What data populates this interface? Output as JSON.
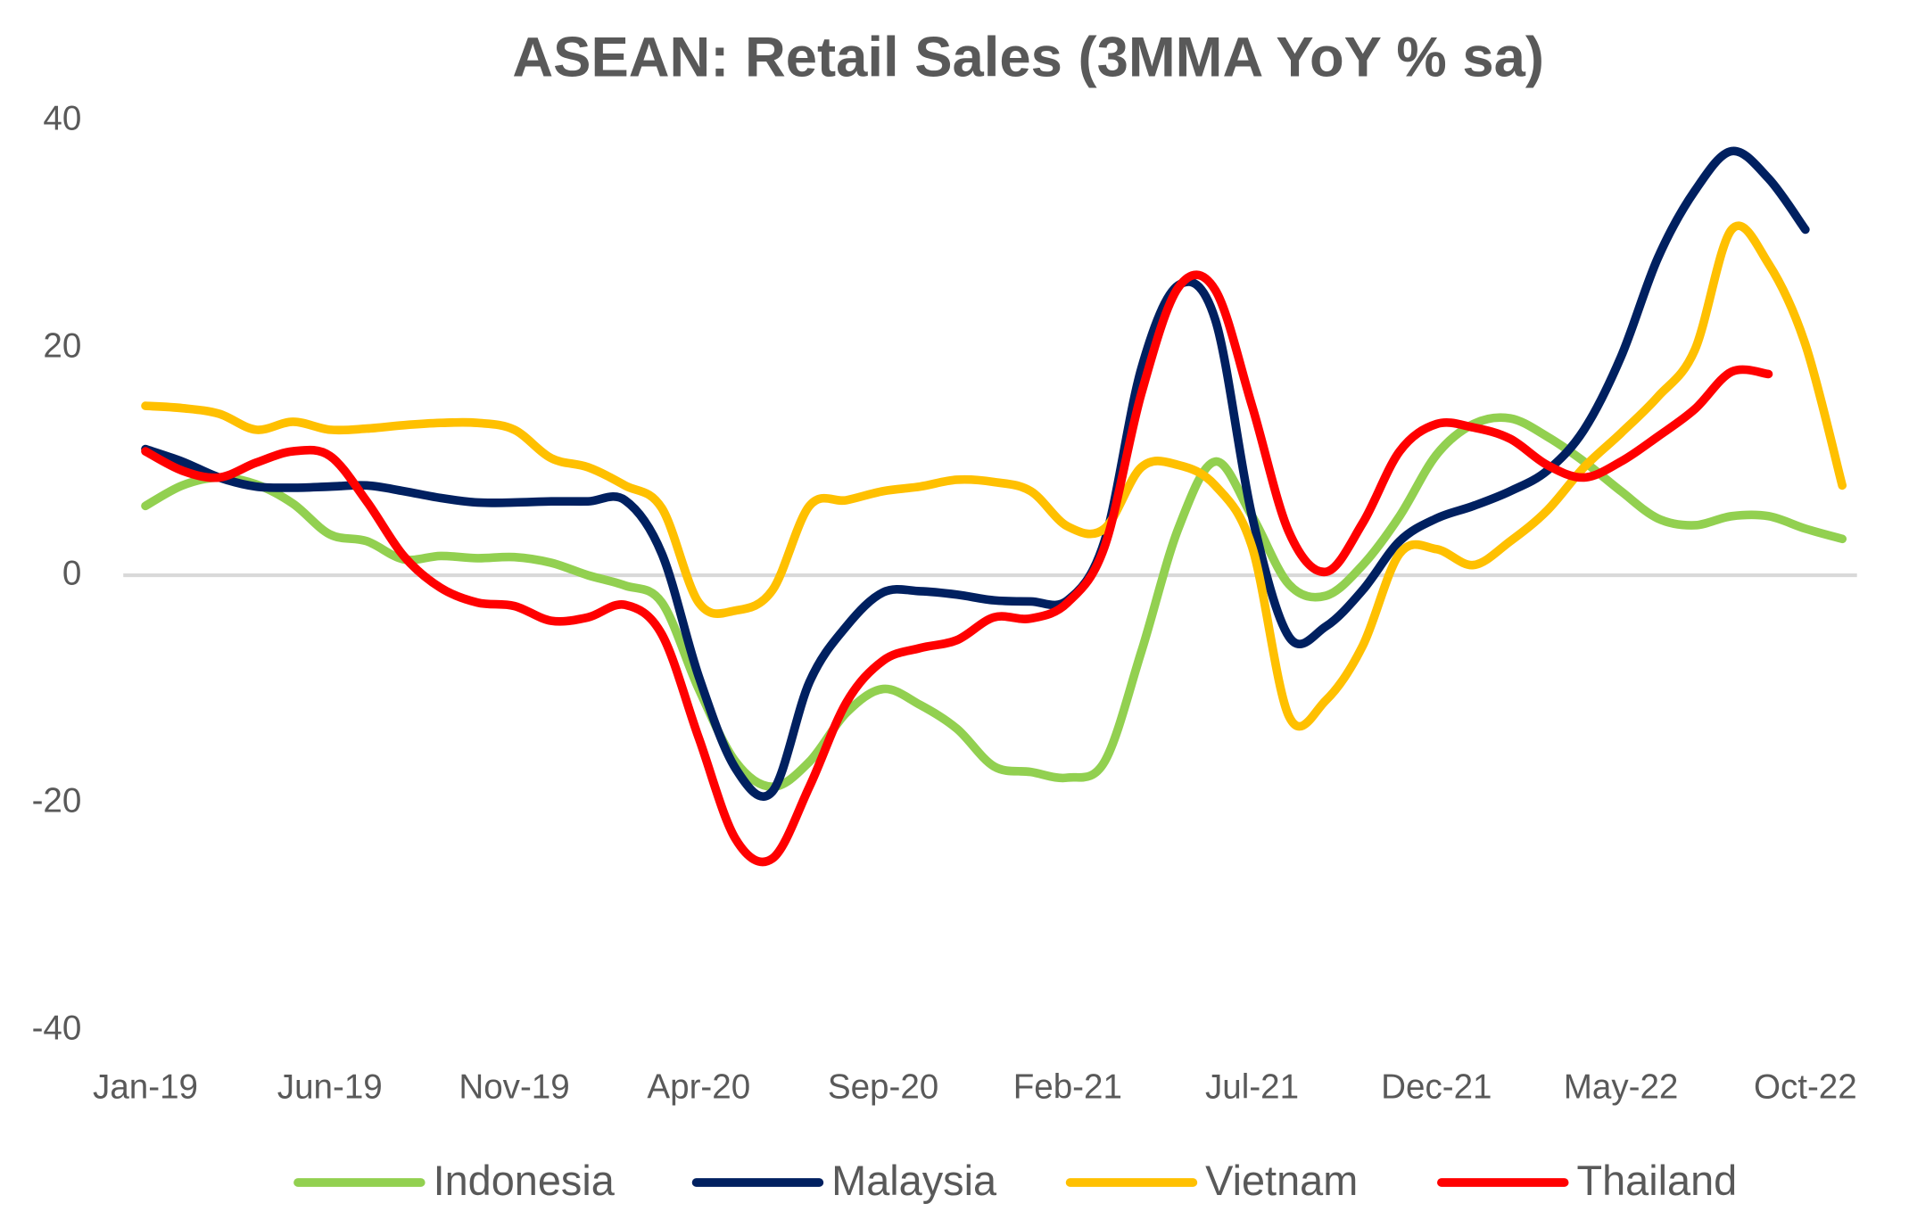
{
  "chart_data": {
    "type": "line",
    "title": "ASEAN: Retail Sales (3MMA YoY % sa)",
    "categories": [
      "Jan-19",
      null,
      null,
      null,
      null,
      "Jun-19",
      null,
      null,
      null,
      null,
      "Nov-19",
      null,
      null,
      null,
      null,
      "Apr-20",
      null,
      null,
      null,
      null,
      "Sep-20",
      null,
      null,
      null,
      null,
      "Feb-21",
      null,
      null,
      null,
      null,
      "Jul-21",
      null,
      null,
      null,
      null,
      "Dec-21",
      null,
      null,
      null,
      null,
      "May-22",
      null,
      null,
      null,
      null,
      "Oct-22",
      null
    ],
    "series": [
      {
        "name": "Indonesia",
        "color": "#92d050",
        "values": [
          6.1,
          7.9,
          8.6,
          8,
          6.3,
          3.6,
          3,
          1.4,
          1.7,
          1.5,
          1.6,
          1.1,
          0,
          -0.9,
          -2.4,
          -10,
          -16.4,
          -18.6,
          -16.4,
          -12.1,
          -10,
          -11.4,
          -13.5,
          -16.8,
          -17.3,
          -17.8,
          -16.4,
          -6.7,
          4.1,
          10,
          5.2,
          -0.8,
          -1.8,
          0.9,
          5.2,
          10.6,
          13.3,
          13.8,
          12.2,
          10,
          7.4,
          5,
          4.4,
          5.2,
          5.2,
          4.1,
          3.2
        ]
      },
      {
        "name": "Malaysia",
        "color": "#002060",
        "values": [
          11.1,
          10,
          8.6,
          7.8,
          7.7,
          7.8,
          7.9,
          7.4,
          6.8,
          6.4,
          6.4,
          6.5,
          6.5,
          6.6,
          1.9,
          -8.9,
          -17,
          -19,
          -9.4,
          -4.5,
          -1.5,
          -1.4,
          -1.7,
          -2.2,
          -2.3,
          -2.2,
          3,
          18.2,
          25.5,
          22.5,
          5.2,
          -5.4,
          -4.5,
          -1.3,
          3,
          5,
          6.1,
          7.4,
          9.2,
          12.8,
          19.2,
          27.9,
          33.8,
          37.3,
          34.9,
          30.4,
          null
        ]
      },
      {
        "name": "Vietnam",
        "color": "#ffc000",
        "values": [
          14.9,
          14.7,
          14.2,
          12.8,
          13.5,
          12.8,
          12.9,
          13.2,
          13.4,
          13.4,
          12.8,
          10.3,
          9.5,
          7.9,
          5.9,
          -2.4,
          -3.1,
          -1.3,
          6.1,
          6.6,
          7.4,
          7.8,
          8.4,
          8.2,
          7.4,
          4.3,
          4.1,
          9.5,
          9.7,
          7.9,
          2.5,
          -12.4,
          -11,
          -6.2,
          1.9,
          2.3,
          0.9,
          3,
          5.7,
          9.5,
          12.5,
          15.7,
          19.8,
          30.4,
          27.4,
          20.3,
          7.9
        ]
      },
      {
        "name": "Thailand",
        "color": "#ff0000",
        "values": [
          10.9,
          9.2,
          8.6,
          9.9,
          10.9,
          10.5,
          6.5,
          1.7,
          -1.1,
          -2.4,
          -2.7,
          -4,
          -3.7,
          -2.6,
          -5.2,
          -14.3,
          -23.2,
          -24.9,
          -18.6,
          -11.2,
          -7.5,
          -6.4,
          -5.7,
          -3.7,
          -3.8,
          -2.4,
          2.5,
          16,
          25.3,
          25.1,
          14.9,
          3.8,
          0.3,
          4.6,
          10.9,
          13.3,
          13,
          12,
          9.7,
          8.6,
          10,
          12.2,
          14.6,
          17.9,
          17.7,
          null,
          null
        ]
      }
    ],
    "ylim": [
      -40,
      40
    ],
    "yticks": [
      -40,
      -20,
      0,
      20,
      40
    ],
    "grid": false
  }
}
